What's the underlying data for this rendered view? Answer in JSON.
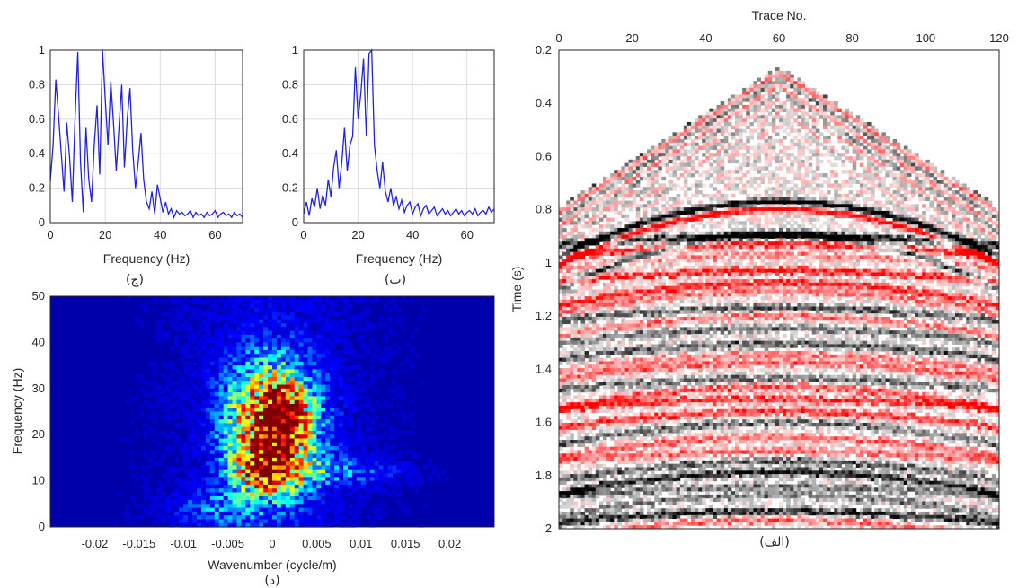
{
  "chart_data": [
    {
      "id": "ja",
      "type": "line",
      "panel_label": "(ج)",
      "xlabel": "Frequency (Hz)",
      "ylabel": "",
      "xlim": [
        0,
        70
      ],
      "ylim": [
        0,
        1
      ],
      "xticks": [
        0,
        20,
        40,
        60
      ],
      "yticks": [
        0,
        0.2,
        0.4,
        0.6,
        0.8,
        1
      ],
      "grid": true,
      "series": [
        {
          "color": "#2222dd",
          "x": [
            0,
            1,
            2,
            3,
            4,
            5,
            6,
            7,
            8,
            9,
            10,
            11,
            12,
            13,
            14,
            15,
            16,
            17,
            18,
            19,
            20,
            21,
            22,
            23,
            24,
            25,
            26,
            27,
            28,
            29,
            30,
            31,
            32,
            33,
            34,
            35,
            36,
            37,
            38,
            39,
            40,
            41,
            42,
            43,
            44,
            45,
            46,
            47,
            48,
            49,
            50,
            51,
            52,
            53,
            54,
            55,
            56,
            57,
            58,
            59,
            60,
            61,
            62,
            63,
            64,
            65,
            66,
            67,
            68,
            69,
            70
          ],
          "y": [
            0.24,
            0.45,
            0.83,
            0.62,
            0.4,
            0.18,
            0.58,
            0.38,
            0.12,
            0.6,
            0.99,
            0.35,
            0.06,
            0.55,
            0.25,
            0.12,
            0.45,
            0.68,
            0.28,
            1.0,
            0.72,
            0.45,
            0.82,
            0.58,
            0.3,
            0.55,
            0.8,
            0.32,
            0.6,
            0.78,
            0.42,
            0.2,
            0.35,
            0.52,
            0.25,
            0.12,
            0.08,
            0.18,
            0.05,
            0.22,
            0.14,
            0.06,
            0.12,
            0.05,
            0.08,
            0.03,
            0.07,
            0.05,
            0.06,
            0.04,
            0.05,
            0.07,
            0.03,
            0.06,
            0.04,
            0.05,
            0.03,
            0.06,
            0.04,
            0.05,
            0.07,
            0.03,
            0.05,
            0.06,
            0.04,
            0.05,
            0.03,
            0.06,
            0.04,
            0.05,
            0.03
          ]
        }
      ]
    },
    {
      "id": "be",
      "type": "line",
      "panel_label": "(ب)",
      "xlabel": "Frequency (Hz)",
      "ylabel": "",
      "xlim": [
        0,
        70
      ],
      "ylim": [
        0,
        1
      ],
      "xticks": [
        0,
        20,
        40,
        60
      ],
      "yticks": [
        0,
        0.2,
        0.4,
        0.6,
        0.8,
        1
      ],
      "grid": true,
      "series": [
        {
          "color": "#2222dd",
          "x": [
            0,
            1,
            2,
            3,
            4,
            5,
            6,
            7,
            8,
            9,
            10,
            11,
            12,
            13,
            14,
            15,
            16,
            17,
            18,
            19,
            20,
            21,
            22,
            23,
            24,
            25,
            26,
            27,
            28,
            29,
            30,
            31,
            32,
            33,
            34,
            35,
            36,
            37,
            38,
            39,
            40,
            41,
            42,
            43,
            44,
            45,
            46,
            47,
            48,
            49,
            50,
            51,
            52,
            53,
            54,
            55,
            56,
            57,
            58,
            59,
            60,
            61,
            62,
            63,
            64,
            65,
            66,
            67,
            68,
            69,
            70
          ],
          "y": [
            0.05,
            0.12,
            0.04,
            0.14,
            0.09,
            0.2,
            0.08,
            0.16,
            0.1,
            0.25,
            0.15,
            0.32,
            0.42,
            0.2,
            0.35,
            0.55,
            0.3,
            0.45,
            0.5,
            0.9,
            0.6,
            0.75,
            0.95,
            0.5,
            0.98,
            1.0,
            0.45,
            0.3,
            0.2,
            0.35,
            0.18,
            0.12,
            0.2,
            0.1,
            0.15,
            0.08,
            0.13,
            0.06,
            0.1,
            0.12,
            0.05,
            0.09,
            0.11,
            0.04,
            0.08,
            0.1,
            0.05,
            0.07,
            0.09,
            0.04,
            0.06,
            0.08,
            0.05,
            0.07,
            0.04,
            0.06,
            0.08,
            0.05,
            0.07,
            0.04,
            0.06,
            0.07,
            0.05,
            0.08,
            0.04,
            0.06,
            0.07,
            0.05,
            0.09,
            0.06,
            0.08
          ]
        }
      ]
    },
    {
      "id": "dal",
      "type": "heatmap",
      "panel_label": "(د)",
      "xlabel": "Wavenumber (cycle/m)",
      "ylabel": "Frequency (Hz)",
      "xlim": [
        -0.025,
        0.025
      ],
      "ylim": [
        0,
        50
      ],
      "xticks": [
        -0.02,
        -0.015,
        -0.01,
        -0.005,
        0,
        0.005,
        0.01,
        0.015,
        0.02
      ],
      "yticks": [
        0,
        10,
        20,
        30,
        40,
        50
      ],
      "colormap": "jet",
      "colors": [
        "#00008f",
        "#0000ff",
        "#00ffff",
        "#ffff00",
        "#ff0000",
        "#800000"
      ],
      "energy_lobes": [
        {
          "kx": 0.0,
          "f": 22,
          "sigma_kx": 0.0035,
          "sigma_f": 9,
          "amp": 0.75
        },
        {
          "kx": -0.0005,
          "f": 12,
          "sigma_kx": 0.0022,
          "sigma_f": 3,
          "amp": 0.55
        },
        {
          "kx": 0.001,
          "f": 24,
          "sigma_kx": 0.0015,
          "sigma_f": 4,
          "amp": 0.45
        },
        {
          "kx": 0.008,
          "f": 12,
          "sigma_kx": 0.005,
          "sigma_f": 2,
          "amp": 0.18
        },
        {
          "kx": -0.006,
          "f": 4,
          "sigma_kx": 0.004,
          "sigma_f": 3,
          "amp": 0.15
        }
      ]
    },
    {
      "id": "alef",
      "type": "heatmap",
      "panel_label": "(الف)",
      "title": "Trace No.",
      "xlabel": "Trace No.",
      "ylabel": "Time (s)",
      "xlim": [
        0,
        120
      ],
      "ylim": [
        0.2,
        2
      ],
      "y_reversed": true,
      "x_axis_position": "top",
      "xticks": [
        0,
        20,
        40,
        60,
        80,
        100,
        120
      ],
      "yticks": [
        0.2,
        0.4,
        0.6,
        0.8,
        1,
        1.2,
        1.4,
        1.6,
        1.8,
        2
      ],
      "colormap": "black-white-red",
      "colors": [
        "#000000",
        "#ffffff",
        "#ff0000"
      ],
      "apex_trace": 60,
      "apex_time": 0.27,
      "edge_time": 0.8,
      "strong_reflection_time_center": 0.77,
      "strong_reflection_time_edge": 0.98
    }
  ]
}
